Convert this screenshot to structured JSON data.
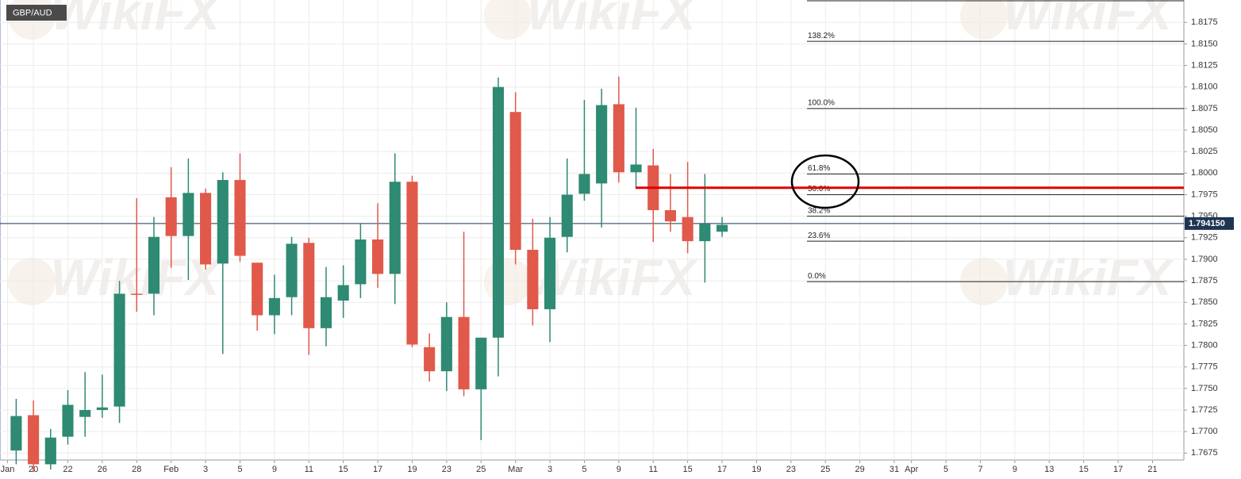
{
  "chart_data": {
    "type": "candlestick",
    "title": "GBP/AUD",
    "watermark": "WikiFX",
    "up_color": "#2e8a72",
    "down_color": "#e0594a",
    "grid": true,
    "xlim": [
      -1.94,
      66.82
    ],
    "ylim": [
      1.7667,
      1.8201
    ],
    "xticks": [
      {
        "value": -1.5,
        "label": "Jan"
      },
      {
        "value": 0,
        "label": "20"
      },
      {
        "value": 2,
        "label": "22"
      },
      {
        "value": 4,
        "label": "26"
      },
      {
        "value": 6,
        "label": "28"
      },
      {
        "value": 8,
        "label": "Feb"
      },
      {
        "value": 10,
        "label": "3"
      },
      {
        "value": 12,
        "label": "5"
      },
      {
        "value": 14,
        "label": "9"
      },
      {
        "value": 16,
        "label": "11"
      },
      {
        "value": 18,
        "label": "15"
      },
      {
        "value": 20,
        "label": "17"
      },
      {
        "value": 22,
        "label": "19"
      },
      {
        "value": 24,
        "label": "23"
      },
      {
        "value": 26,
        "label": "25"
      },
      {
        "value": 28,
        "label": "Mar"
      },
      {
        "value": 30,
        "label": "3"
      },
      {
        "value": 32,
        "label": "5"
      },
      {
        "value": 34,
        "label": "9"
      },
      {
        "value": 36,
        "label": "11"
      },
      {
        "value": 38,
        "label": "15"
      },
      {
        "value": 40,
        "label": "17"
      },
      {
        "value": 42,
        "label": "19"
      },
      {
        "value": 44,
        "label": "23"
      },
      {
        "value": 46,
        "label": "25"
      },
      {
        "value": 48,
        "label": "29"
      },
      {
        "value": 50,
        "label": "31"
      },
      {
        "value": 51,
        "label": "Apr"
      },
      {
        "value": 53,
        "label": "5"
      },
      {
        "value": 55,
        "label": "7"
      },
      {
        "value": 57,
        "label": "9"
      },
      {
        "value": 59,
        "label": "13"
      },
      {
        "value": 61,
        "label": "15"
      },
      {
        "value": 63,
        "label": "17"
      },
      {
        "value": 65,
        "label": "21"
      }
    ],
    "yticks": [
      1.7675,
      {
        "value": 1.77,
        "label": "1.7700"
      },
      1.7725,
      {
        "value": 1.775,
        "label": "1.7750"
      },
      1.7775,
      {
        "value": 1.78,
        "label": "1.7800"
      },
      1.7825,
      {
        "value": 1.785,
        "label": "1.7850"
      },
      1.7875,
      {
        "value": 1.79,
        "label": "1.7900"
      },
      1.7925,
      {
        "value": 1.795,
        "label": "1.7950"
      },
      1.7975,
      {
        "value": 1.8,
        "label": "1.8000"
      },
      1.8025,
      {
        "value": 1.805,
        "label": "1.8050"
      },
      1.8075,
      {
        "value": 1.81,
        "label": "1.8100"
      },
      1.8125,
      {
        "value": 1.815,
        "label": "1.8150"
      },
      1.8175
    ],
    "candles": {
      "x": [
        -1,
        0,
        1,
        2,
        3,
        4,
        5,
        6,
        7,
        8,
        9,
        10,
        11,
        12,
        13,
        14,
        15,
        16,
        17,
        18,
        19,
        20,
        21,
        22,
        23,
        24,
        25,
        26,
        27,
        28,
        29,
        30,
        31,
        32,
        33,
        34,
        35,
        36,
        37,
        38,
        39,
        40
      ],
      "open": [
        1.7678,
        1.7719,
        1.7662,
        1.7694,
        1.7717,
        1.7725,
        1.7729,
        1.786,
        1.786,
        1.7972,
        1.7927,
        1.7977,
        1.7895,
        1.7992,
        1.7896,
        1.7835,
        1.7856,
        1.7919,
        1.782,
        1.7852,
        1.7871,
        1.7923,
        1.7883,
        1.799,
        1.7798,
        1.777,
        1.7833,
        1.7749,
        1.7809,
        1.8071,
        1.7911,
        1.7842,
        1.7926,
        1.7976,
        1.7988,
        1.808,
        1.8001,
        1.8009,
        1.7957,
        1.7949,
        1.7921,
        1.7932
      ],
      "high": [
        1.7738,
        1.7736,
        1.7703,
        1.7748,
        1.7769,
        1.7766,
        1.7875,
        1.7971,
        1.7949,
        1.8007,
        1.8017,
        1.7982,
        1.8001,
        1.8023,
        1.7896,
        1.7882,
        1.7926,
        1.7925,
        1.7891,
        1.7893,
        1.7941,
        1.7965,
        1.8023,
        1.7997,
        1.7814,
        1.785,
        1.7932,
        1.7809,
        1.8111,
        1.8094,
        1.7947,
        1.7949,
        1.8017,
        1.8085,
        1.8098,
        1.8112,
        1.8076,
        1.8028,
        1.7999,
        1.8013,
        1.7999,
        1.7949
      ],
      "low": [
        1.7662,
        1.7653,
        1.7656,
        1.7685,
        1.7694,
        1.7716,
        1.771,
        1.7839,
        1.7835,
        1.789,
        1.7876,
        1.7888,
        1.779,
        1.7897,
        1.7817,
        1.7813,
        1.7835,
        1.7789,
        1.7799,
        1.7832,
        1.7855,
        1.7867,
        1.7848,
        1.7798,
        1.7758,
        1.7747,
        1.7741,
        1.769,
        1.7764,
        1.7894,
        1.7823,
        1.7804,
        1.7908,
        1.7968,
        1.7937,
        1.7989,
        1.7983,
        1.792,
        1.7932,
        1.7907,
        1.7873,
        1.7926
      ],
      "close": [
        1.7718,
        1.7662,
        1.7693,
        1.7731,
        1.7725,
        1.7728,
        1.786,
        1.7859,
        1.7926,
        1.7927,
        1.7977,
        1.7894,
        1.7992,
        1.7904,
        1.7835,
        1.7855,
        1.7918,
        1.782,
        1.7856,
        1.787,
        1.7923,
        1.7883,
        1.799,
        1.7801,
        1.777,
        1.7833,
        1.7749,
        1.7809,
        1.81,
        1.7911,
        1.7842,
        1.7925,
        1.7975,
        1.7999,
        1.8079,
        1.8001,
        1.801,
        1.7957,
        1.7944,
        1.7921,
        1.7941,
        1.794
      ]
    },
    "current_price": {
      "value": 1.79415,
      "label": "1.794150"
    },
    "fib_levels": [
      {
        "label": "138.2%",
        "value": 1.8153
      },
      {
        "label": "100.0%",
        "value": 1.8075
      },
      {
        "label": "61.8%",
        "value": 1.7999
      },
      {
        "label": "50.0%",
        "value": 1.7975
      },
      {
        "label": "38.2%",
        "value": 1.795
      },
      {
        "label": "23.6%",
        "value": 1.7921
      },
      {
        "label": "0.0%",
        "value": 1.7874
      }
    ],
    "resistance_line": 1.7983,
    "resistance_color": "#e00000"
  }
}
